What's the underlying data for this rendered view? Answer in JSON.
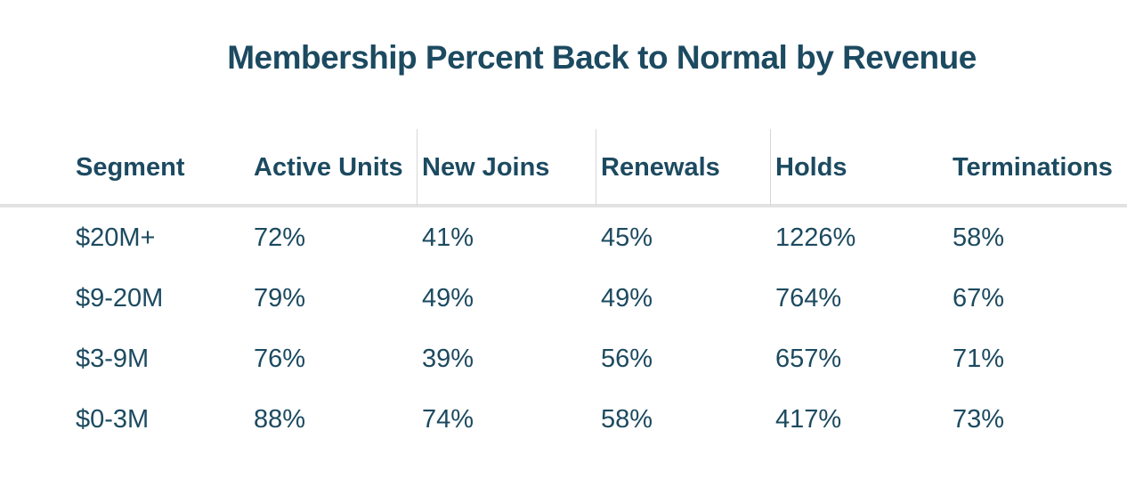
{
  "title": "Membership Percent Back to Normal by Revenue",
  "table": {
    "columns": [
      "Segment",
      "Active Units",
      "New Joins",
      "Renewals",
      "Holds",
      "Terminations"
    ],
    "rows": [
      [
        "$20M+",
        "72%",
        "41%",
        "45%",
        "1226%",
        "58%"
      ],
      [
        "$9-20M",
        "79%",
        "49%",
        "49%",
        "764%",
        "67%"
      ],
      [
        "$3-9M",
        "76%",
        "39%",
        "56%",
        "657%",
        "71%"
      ],
      [
        "$0-3M",
        "88%",
        "74%",
        "58%",
        "417%",
        "73%"
      ]
    ]
  },
  "chart_data": {
    "type": "table",
    "title": "Membership Percent Back to Normal by Revenue",
    "columns": [
      "Segment",
      "Active Units",
      "New Joins",
      "Renewals",
      "Holds",
      "Terminations"
    ],
    "categories": [
      "$20M+",
      "$9-20M",
      "$3-9M",
      "$0-3M"
    ],
    "series": [
      {
        "name": "Active Units",
        "values": [
          72,
          79,
          76,
          88
        ]
      },
      {
        "name": "New Joins",
        "values": [
          41,
          49,
          39,
          74
        ]
      },
      {
        "name": "Renewals",
        "values": [
          45,
          49,
          56,
          58
        ]
      },
      {
        "name": "Holds",
        "values": [
          1226,
          764,
          657,
          417
        ]
      },
      {
        "name": "Terminations",
        "values": [
          58,
          67,
          71,
          73
        ]
      }
    ],
    "unit": "percent"
  },
  "colors": {
    "text": "#1c4a60",
    "title_text": "#1c4a60",
    "header_rule": "#e2e2e2",
    "column_divider": "#d6d6d6"
  }
}
